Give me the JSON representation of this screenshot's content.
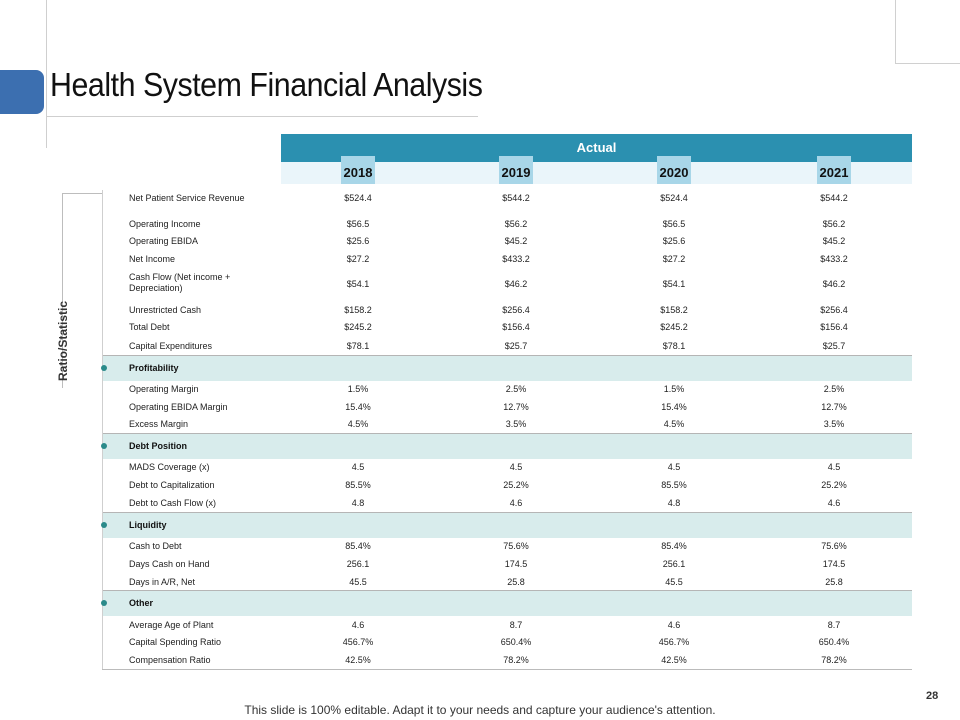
{
  "title": "Health System Financial Analysis",
  "header": {
    "actual_label": "Actual",
    "years": [
      "2018",
      "2019",
      "2020",
      "2021"
    ]
  },
  "side_label": "Ratio/Statistic",
  "rows": [
    {
      "label": "Net Patient Service Revenue",
      "values": [
        "$524.4",
        "$544.2",
        "$524.4",
        "$544.2"
      ]
    },
    {
      "label": "Operating Income",
      "values": [
        "$56.5",
        "$56.2",
        "$56.5",
        "$56.2"
      ]
    },
    {
      "label": "Operating EBIDA",
      "values": [
        "$25.6",
        "$45.2",
        "$25.6",
        "$45.2"
      ]
    },
    {
      "label": "Net Income",
      "values": [
        "$27.2",
        "$433.2",
        "$27.2",
        "$433.2"
      ]
    },
    {
      "label": "Cash Flow (Net income + Depreciation)",
      "values": [
        "$54.1",
        "$46.2",
        "$54.1",
        "$46.2"
      ]
    },
    {
      "label": "Unrestricted Cash",
      "values": [
        "$158.2",
        "$256.4",
        "$158.2",
        "$256.4"
      ]
    },
    {
      "label": "Total Debt",
      "values": [
        "$245.2",
        "$156.4",
        "$245.2",
        "$156.4"
      ]
    },
    {
      "label": "Capital Expenditures",
      "values": [
        "$78.1",
        "$25.7",
        "$78.1",
        "$25.7"
      ]
    }
  ],
  "sections": [
    {
      "name": "Profitability",
      "rows": [
        {
          "label": "Operating Margin",
          "values": [
            "1.5%",
            "2.5%",
            "1.5%",
            "2.5%"
          ]
        },
        {
          "label": "Operating EBIDA Margin",
          "values": [
            "15.4%",
            "12.7%",
            "15.4%",
            "12.7%"
          ]
        },
        {
          "label": "Excess Margin",
          "values": [
            "4.5%",
            "3.5%",
            "4.5%",
            "3.5%"
          ]
        }
      ]
    },
    {
      "name": "Debt Position",
      "rows": [
        {
          "label": "MADS Coverage (x)",
          "values": [
            "4.5",
            "4.5",
            "4.5",
            "4.5"
          ]
        },
        {
          "label": "Debt to Capitalization",
          "values": [
            "85.5%",
            "25.2%",
            "85.5%",
            "25.2%"
          ]
        },
        {
          "label": "Debt to Cash Flow (x)",
          "values": [
            "4.8",
            "4.6",
            "4.8",
            "4.6"
          ]
        }
      ]
    },
    {
      "name": "Liquidity",
      "rows": [
        {
          "label": "Cash to Debt",
          "values": [
            "85.4%",
            "75.6%",
            "85.4%",
            "75.6%"
          ]
        },
        {
          "label": "Days Cash on Hand",
          "values": [
            "256.1",
            "174.5",
            "256.1",
            "174.5"
          ]
        },
        {
          "label": "Days in A/R, Net",
          "values": [
            "45.5",
            "25.8",
            "45.5",
            "25.8"
          ]
        }
      ]
    },
    {
      "name": "Other",
      "rows": [
        {
          "label": "Average Age of Plant",
          "values": [
            "4.6",
            "8.7",
            "4.6",
            "8.7"
          ]
        },
        {
          "label": "Capital Spending Ratio",
          "values": [
            "456.7%",
            "650.4%",
            "456.7%",
            "650.4%"
          ]
        },
        {
          "label": "Compensation Ratio",
          "values": [
            "42.5%",
            "78.2%",
            "42.5%",
            "78.2%"
          ]
        }
      ]
    }
  ],
  "footer": "This slide is 100% editable. Adapt it to your needs and capture your audience's attention.",
  "page_number": "28",
  "colors": {
    "header": "#2b90b0",
    "section": "#d8ecec",
    "bullet": "#2a8a8a",
    "accent": "#3c6fb0"
  }
}
